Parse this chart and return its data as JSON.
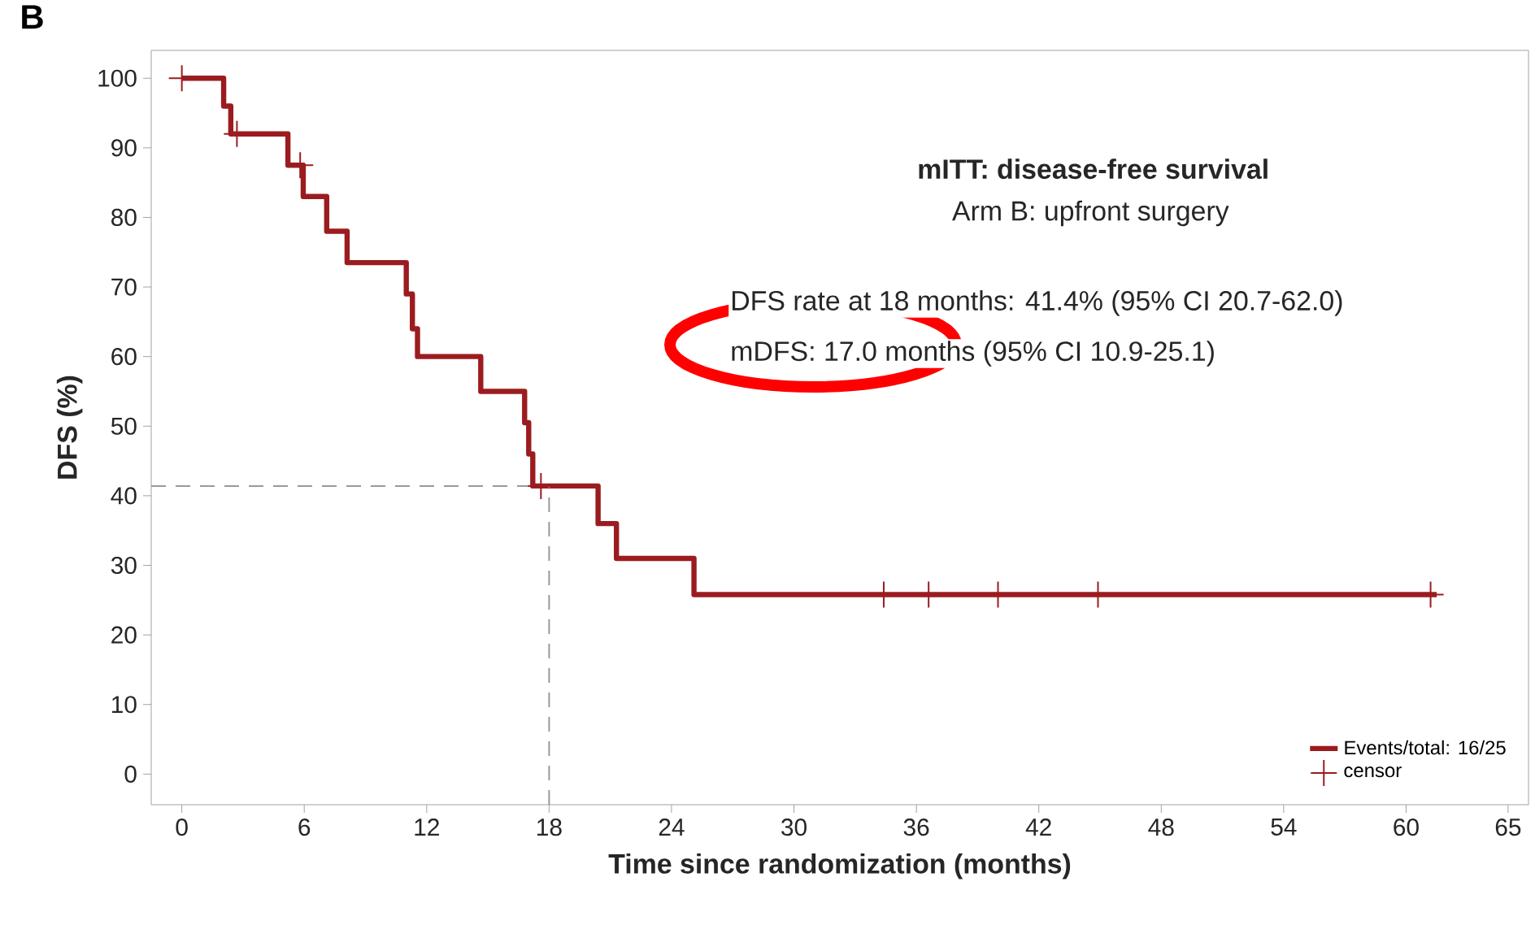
{
  "chart_data": {
    "type": "step",
    "title": "mITT: disease-free survival",
    "subtitle": "Arm B: upfront surgery",
    "xlabel": "Time since randomization (months)",
    "ylabel": "DFS (%)",
    "annotations": [
      "B",
      "DFS rate at 18 months: 41.4% (95% CI 20.7-62.0)",
      "mDFS: 17.0 months (95% CI 10.9-25.1)"
    ],
    "series": [
      {
        "name": "Events/total: 16/25",
        "color": "#9b1c20",
        "x": [
          0,
          2.05,
          2.4,
          5.2,
          5.95,
          7.1,
          8.1,
          11.0,
          11.3,
          11.55,
          14.65,
          16.8,
          17.0,
          17.2,
          20.4,
          21.3,
          25.1,
          61.5
        ],
        "values": [
          100,
          96,
          92,
          87.5,
          83,
          78,
          73.5,
          69,
          64,
          60,
          55,
          50.5,
          46,
          41.4,
          36,
          31,
          25.8,
          25.8
        ]
      },
      {
        "name": "censor",
        "type": "scatter",
        "marker": "cross",
        "color": "#9b1c20",
        "x": [
          0,
          2.7,
          5.8,
          17.6,
          34.4,
          36.6,
          40,
          44.9,
          61.2
        ],
        "values": [
          100,
          92,
          87.5,
          41.4,
          25.8,
          25.8,
          25.8,
          25.8,
          25.8
        ]
      }
    ],
    "ref_lines": [
      {
        "axis": "y",
        "value": 41.4,
        "color": "#999999",
        "line_style": "dashed"
      },
      {
        "axis": "x",
        "value": 18,
        "color": "#999999",
        "line_style": "dashed"
      }
    ],
    "xlim": [
      -1.5,
      66
    ],
    "ylim": [
      -4.4,
      104
    ],
    "xticks": [
      0,
      6,
      12,
      18,
      24,
      30,
      36,
      42,
      48,
      54,
      60,
      65
    ],
    "yticks": [
      0,
      10,
      20,
      30,
      40,
      50,
      60,
      70,
      80,
      90,
      100
    ],
    "legend": "bottom right"
  }
}
